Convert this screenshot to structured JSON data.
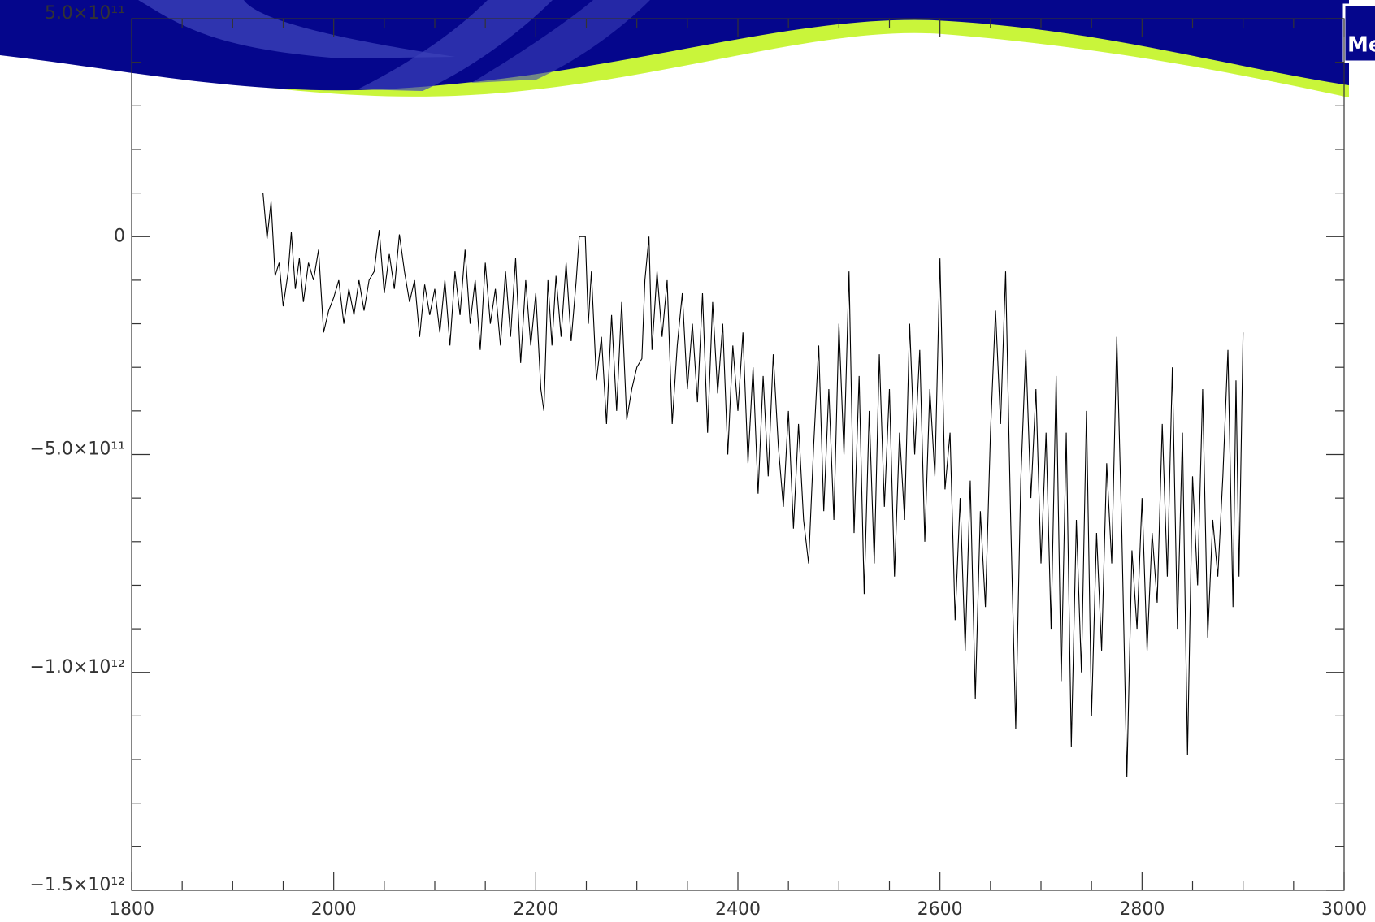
{
  "banner": {
    "logo": "Me"
  },
  "chart_data": {
    "type": "line",
    "x": [
      1930,
      1934,
      1938,
      1942,
      1946,
      1950,
      1955,
      1958,
      1962,
      1966,
      1970,
      1975,
      1980,
      1985,
      1990,
      1995,
      2000,
      2005,
      2010,
      2015,
      2020,
      2025,
      2030,
      2035,
      2040,
      2045,
      2050,
      2055,
      2060,
      2065,
      2070,
      2075,
      2080,
      2085,
      2090,
      2095,
      2100,
      2105,
      2110,
      2115,
      2120,
      2125,
      2130,
      2135,
      2140,
      2145,
      2150,
      2155,
      2160,
      2165,
      2170,
      2175,
      2180,
      2185,
      2190,
      2195,
      2200,
      2205,
      2208,
      2212,
      2216,
      2220,
      2225,
      2230,
      2235,
      2240,
      2243,
      2249,
      2252,
      2255,
      2260,
      2265,
      2270,
      2275,
      2280,
      2285,
      2290,
      2295,
      2300,
      2305,
      2308,
      2312,
      2315,
      2320,
      2325,
      2330,
      2335,
      2340,
      2345,
      2350,
      2355,
      2360,
      2365,
      2370,
      2375,
      2380,
      2385,
      2390,
      2395,
      2400,
      2405,
      2410,
      2415,
      2420,
      2425,
      2430,
      2435,
      2440,
      2445,
      2450,
      2455,
      2460,
      2465,
      2470,
      2475,
      2480,
      2485,
      2490,
      2495,
      2500,
      2505,
      2510,
      2515,
      2520,
      2525,
      2530,
      2535,
      2540,
      2545,
      2550,
      2555,
      2560,
      2565,
      2570,
      2575,
      2580,
      2585,
      2590,
      2595,
      2600,
      2605,
      2610,
      2615,
      2620,
      2625,
      2630,
      2635,
      2640,
      2645,
      2650,
      2655,
      2660,
      2665,
      2670,
      2675,
      2680,
      2685,
      2690,
      2695,
      2700,
      2705,
      2710,
      2715,
      2720,
      2725,
      2730,
      2735,
      2740,
      2745,
      2750,
      2755,
      2760,
      2765,
      2770,
      2775,
      2780,
      2785,
      2790,
      2795,
      2800,
      2805,
      2810,
      2815,
      2820,
      2825,
      2830,
      2835,
      2840,
      2845,
      2850,
      2855,
      2860,
      2865,
      2870,
      2875,
      2880,
      2885,
      2890,
      2893,
      2896,
      2900
    ],
    "series": [
      {
        "color": "#000000",
        "values": [
          100000000000.0,
          -5000000000.0,
          80000000000.0,
          -90000000000.0,
          -60000000000.0,
          -160000000000.0,
          -80000000000.0,
          10000000000.0,
          -120000000000.0,
          -50000000000.0,
          -150000000000.0,
          -60000000000.0,
          -100000000000.0,
          -30000000000.0,
          -220000000000.0,
          -170000000000.0,
          -140000000000.0,
          -100000000000.0,
          -200000000000.0,
          -120000000000.0,
          -180000000000.0,
          -100000000000.0,
          -170000000000.0,
          -100000000000.0,
          -80000000000.0,
          15000000000.0,
          -130000000000.0,
          -40000000000.0,
          -120000000000.0,
          5000000000.0,
          -80000000000.0,
          -150000000000.0,
          -100000000000.0,
          -230000000000.0,
          -110000000000.0,
          -180000000000.0,
          -120000000000.0,
          -220000000000.0,
          -100000000000.0,
          -250000000000.0,
          -80000000000.0,
          -180000000000.0,
          -30000000000.0,
          -200000000000.0,
          -100000000000.0,
          -260000000000.0,
          -60000000000.0,
          -200000000000.0,
          -120000000000.0,
          -250000000000.0,
          -80000000000.0,
          -230000000000.0,
          -50000000000.0,
          -290000000000.0,
          -100000000000.0,
          -250000000000.0,
          -130000000000.0,
          -350000000000.0,
          -400000000000.0,
          -100000000000.0,
          -250000000000.0,
          -90000000000.0,
          -230000000000.0,
          -60000000000.0,
          -240000000000.0,
          -100000000000.0,
          0,
          0,
          -200000000000.0,
          -80000000000.0,
          -330000000000.0,
          -230000000000.0,
          -430000000000.0,
          -180000000000.0,
          -400000000000.0,
          -150000000000.0,
          -420000000000.0,
          -350000000000.0,
          -300000000000.0,
          -280000000000.0,
          -100000000000.0,
          0,
          -260000000000.0,
          -80000000000.0,
          -230000000000.0,
          -100000000000.0,
          -430000000000.0,
          -250000000000.0,
          -130000000000.0,
          -350000000000.0,
          -200000000000.0,
          -380000000000.0,
          -130000000000.0,
          -450000000000.0,
          -150000000000.0,
          -360000000000.0,
          -200000000000.0,
          -500000000000.0,
          -250000000000.0,
          -400000000000.0,
          -220000000000.0,
          -520000000000.0,
          -300000000000.0,
          -590000000000.0,
          -320000000000.0,
          -550000000000.0,
          -270000000000.0,
          -480000000000.0,
          -620000000000.0,
          -400000000000.0,
          -670000000000.0,
          -430000000000.0,
          -650000000000.0,
          -750000000000.0,
          -480000000000.0,
          -250000000000.0,
          -630000000000.0,
          -350000000000.0,
          -650000000000.0,
          -200000000000.0,
          -500000000000.0,
          -80000000000.0,
          -680000000000.0,
          -320000000000.0,
          -820000000000.0,
          -400000000000.0,
          -750000000000.0,
          -270000000000.0,
          -620000000000.0,
          -350000000000.0,
          -780000000000.0,
          -450000000000.0,
          -650000000000.0,
          -200000000000.0,
          -500000000000.0,
          -260000000000.0,
          -700000000000.0,
          -350000000000.0,
          -550000000000.0,
          -50000000000.0,
          -580000000000.0,
          -450000000000.0,
          -880000000000.0,
          -600000000000.0,
          -950000000000.0,
          -560000000000.0,
          -1060000000000.0,
          -630000000000.0,
          -850000000000.0,
          -450000000000.0,
          -170000000000.0,
          -430000000000.0,
          -80000000000.0,
          -650000000000.0,
          -1130000000000.0,
          -560000000000.0,
          -260000000000.0,
          -600000000000.0,
          -350000000000.0,
          -750000000000.0,
          -450000000000.0,
          -900000000000.0,
          -320000000000.0,
          -1020000000000.0,
          -450000000000.0,
          -1170000000000.0,
          -650000000000.0,
          -1000000000000.0,
          -400000000000.0,
          -1100000000000.0,
          -680000000000.0,
          -950000000000.0,
          -520000000000.0,
          -750000000000.0,
          -230000000000.0,
          -680000000000.0,
          -1240000000000.0,
          -720000000000.0,
          -900000000000.0,
          -600000000000.0,
          -950000000000.0,
          -680000000000.0,
          -840000000000.0,
          -430000000000.0,
          -780000000000.0,
          -300000000000.0,
          -900000000000.0,
          -450000000000.0,
          -1190000000000.0,
          -550000000000.0,
          -800000000000.0,
          -350000000000.0,
          -920000000000.0,
          -650000000000.0,
          -780000000000.0,
          -550000000000.0,
          -260000000000.0,
          -850000000000.0,
          -330000000000.0,
          -780000000000.0,
          -220000000000.0
        ]
      }
    ],
    "xlim": [
      1800,
      3000
    ],
    "xticks": [
      1800,
      2000,
      2200,
      2400,
      2600,
      2800,
      3000
    ],
    "xminorticks": [
      1850,
      1900,
      1950,
      2050,
      2100,
      2150,
      2250,
      2300,
      2350,
      2450,
      2500,
      2550,
      2650,
      2700,
      2750,
      2850,
      2900,
      2950
    ],
    "ylim": [
      -1500000000000.0,
      500000000000.0
    ],
    "yticks": [
      {
        "value": -1500000000000.0,
        "label": "−1.5×10¹²"
      },
      {
        "value": -1000000000000.0,
        "label": "−1.0×10¹²"
      },
      {
        "value": -500000000000.0,
        "label": "−5.0×10¹¹"
      },
      0,
      {
        "value": 500000000000.0,
        "label": "5.0×10¹¹"
      }
    ],
    "yminorticks": [
      -1400000000000.0,
      -1300000000000.0,
      -1200000000000.0,
      -1100000000000.0,
      -900000000000.0,
      -800000000000.0,
      -700000000000.0,
      -600000000000.0,
      -400000000000.0,
      -300000000000.0,
      -200000000000.0,
      -100000000000.0,
      100000000000.0,
      200000000000.0,
      300000000000.0,
      400000000000.0
    ]
  }
}
